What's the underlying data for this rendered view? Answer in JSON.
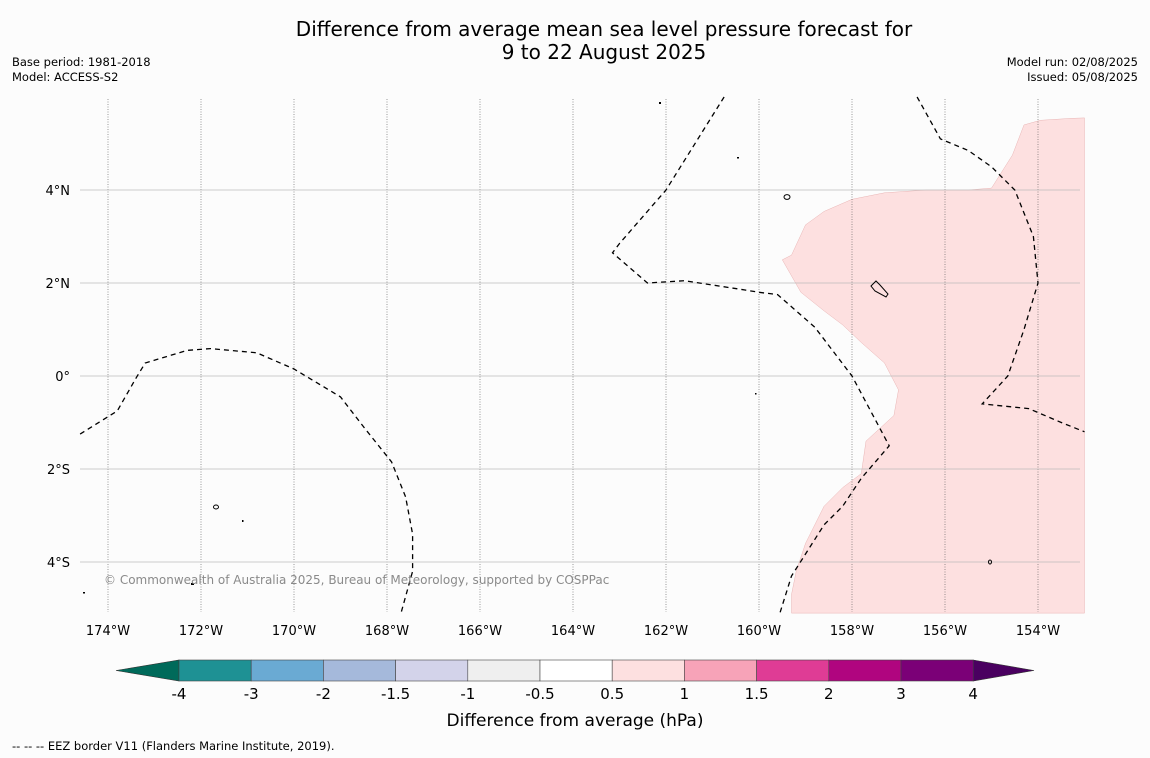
{
  "title": {
    "line1": "Difference from average mean sea level pressure forecast for",
    "line2": "9 to 22 August 2025"
  },
  "meta_left": {
    "base_period": "Base period: 1981-2018",
    "model": "Model: ACCESS-S2"
  },
  "meta_right": {
    "model_run": "Model run: 02/08/2025",
    "issued": "Issued: 05/08/2025"
  },
  "map": {
    "extent": {
      "lon_min": -174.6,
      "lon_max": -153.0,
      "lat_min": -5.1,
      "lat_max": 6.0
    },
    "lat_labels": [
      {
        "lat": 4,
        "label": "4°N"
      },
      {
        "lat": 2,
        "label": "2°N"
      },
      {
        "lat": 0,
        "label": "0°"
      },
      {
        "lat": -2,
        "label": "2°S"
      },
      {
        "lat": -4,
        "label": "4°S"
      }
    ],
    "lon_labels": [
      {
        "lon": -174,
        "label": "174°W"
      },
      {
        "lon": -172,
        "label": "172°W"
      },
      {
        "lon": -170,
        "label": "170°W"
      },
      {
        "lon": -168,
        "label": "168°W"
      },
      {
        "lon": -166,
        "label": "166°W"
      },
      {
        "lon": -164,
        "label": "164°W"
      },
      {
        "lon": -162,
        "label": "162°W"
      },
      {
        "lon": -160,
        "label": "160°W"
      },
      {
        "lon": -158,
        "label": "158°W"
      },
      {
        "lon": -156,
        "label": "156°W"
      },
      {
        "lon": -154,
        "label": "154°W"
      }
    ],
    "copyright": "© Commonwealth of Australia 2025, Bureau of Meteorology, supported by COSPPac",
    "anomaly_region": {
      "category": "0.5 to 1",
      "color": "#fde0e0",
      "lonlat": [
        [
          -153.0,
          5.55
        ],
        [
          -153.3,
          5.54
        ],
        [
          -153.95,
          5.5
        ],
        [
          -154.3,
          5.4
        ],
        [
          -154.55,
          4.75
        ],
        [
          -155.0,
          4.04
        ],
        [
          -155.5,
          4.0
        ],
        [
          -156.4,
          4.0
        ],
        [
          -157.3,
          3.94
        ],
        [
          -158.0,
          3.8
        ],
        [
          -158.6,
          3.54
        ],
        [
          -159.0,
          3.25
        ],
        [
          -159.3,
          2.6
        ],
        [
          -159.5,
          2.5
        ],
        [
          -159.1,
          1.8
        ],
        [
          -158.6,
          1.4
        ],
        [
          -158.2,
          1.1
        ],
        [
          -157.8,
          0.72
        ],
        [
          -157.3,
          0.28
        ],
        [
          -157.0,
          -0.3
        ],
        [
          -157.1,
          -0.85
        ],
        [
          -157.7,
          -1.4
        ],
        [
          -157.8,
          -2.1
        ],
        [
          -158.2,
          -2.4
        ],
        [
          -158.6,
          -2.8
        ],
        [
          -159.0,
          -3.6
        ],
        [
          -159.2,
          -4.2
        ],
        [
          -159.3,
          -4.7
        ],
        [
          -159.3,
          -5.1
        ],
        [
          -153.0,
          -5.1
        ]
      ]
    },
    "eez_borders": [
      {
        "name": "west",
        "lonlat": [
          [
            -174.6,
            -1.25
          ],
          [
            -173.8,
            -0.75
          ],
          [
            -173.4,
            -0.05
          ],
          [
            -173.2,
            0.28
          ],
          [
            -172.3,
            0.55
          ],
          [
            -171.8,
            0.59
          ],
          [
            -170.8,
            0.5
          ],
          [
            -170.0,
            0.15
          ],
          [
            -169.0,
            -0.45
          ],
          [
            -168.5,
            -1.1
          ],
          [
            -167.9,
            -1.85
          ],
          [
            -167.6,
            -2.6
          ],
          [
            -167.45,
            -3.4
          ],
          [
            -167.45,
            -4.2
          ],
          [
            -167.7,
            -5.1
          ]
        ]
      },
      {
        "name": "central",
        "lonlat": [
          [
            -160.75,
            6.0
          ],
          [
            -162.0,
            4.0
          ],
          [
            -163.0,
            2.85
          ],
          [
            -163.15,
            2.65
          ],
          [
            -162.4,
            2.0
          ],
          [
            -161.6,
            2.05
          ],
          [
            -160.3,
            1.85
          ],
          [
            -160.0,
            1.8
          ],
          [
            -159.6,
            1.75
          ],
          [
            -158.8,
            1.05
          ],
          [
            -158.0,
            0.0
          ],
          [
            -157.6,
            -0.75
          ],
          [
            -157.2,
            -1.5
          ],
          [
            -157.8,
            -2.2
          ],
          [
            -158.2,
            -2.8
          ],
          [
            -158.6,
            -3.2
          ],
          [
            -159.3,
            -4.3
          ],
          [
            -159.55,
            -5.1
          ]
        ]
      },
      {
        "name": "east",
        "lonlat": [
          [
            -156.6,
            6.0
          ],
          [
            -156.1,
            5.1
          ],
          [
            -155.5,
            4.85
          ],
          [
            -155.0,
            4.5
          ],
          [
            -154.5,
            4.0
          ],
          [
            -154.1,
            3.0
          ],
          [
            -154.0,
            2.0
          ],
          [
            -154.3,
            1.0
          ],
          [
            -154.65,
            0.0
          ],
          [
            -155.2,
            -0.6
          ],
          [
            -154.2,
            -0.7
          ],
          [
            -153.5,
            -1.0
          ],
          [
            -153.0,
            -1.2
          ]
        ]
      }
    ]
  },
  "colorbar": {
    "label": "Difference from average (hPa)",
    "tick_labels": [
      "-4",
      "-3",
      "-2",
      "-1.5",
      "-1",
      "-0.5",
      "0.5",
      "1",
      "1.5",
      "2",
      "3",
      "4"
    ],
    "under_color": "#006a5a",
    "over_color": "#4a0060",
    "colors": [
      "#1e9194",
      "#6aaad3",
      "#a5b9db",
      "#d3d3ea",
      "#efefef",
      "#ffffff",
      "#fde0e0",
      "#f7a3b8",
      "#df3c95",
      "#b0057f",
      "#7b0077"
    ]
  },
  "footnote": "--  --  -- EEZ border V11 (Flanders Marine Institute, 2019)."
}
